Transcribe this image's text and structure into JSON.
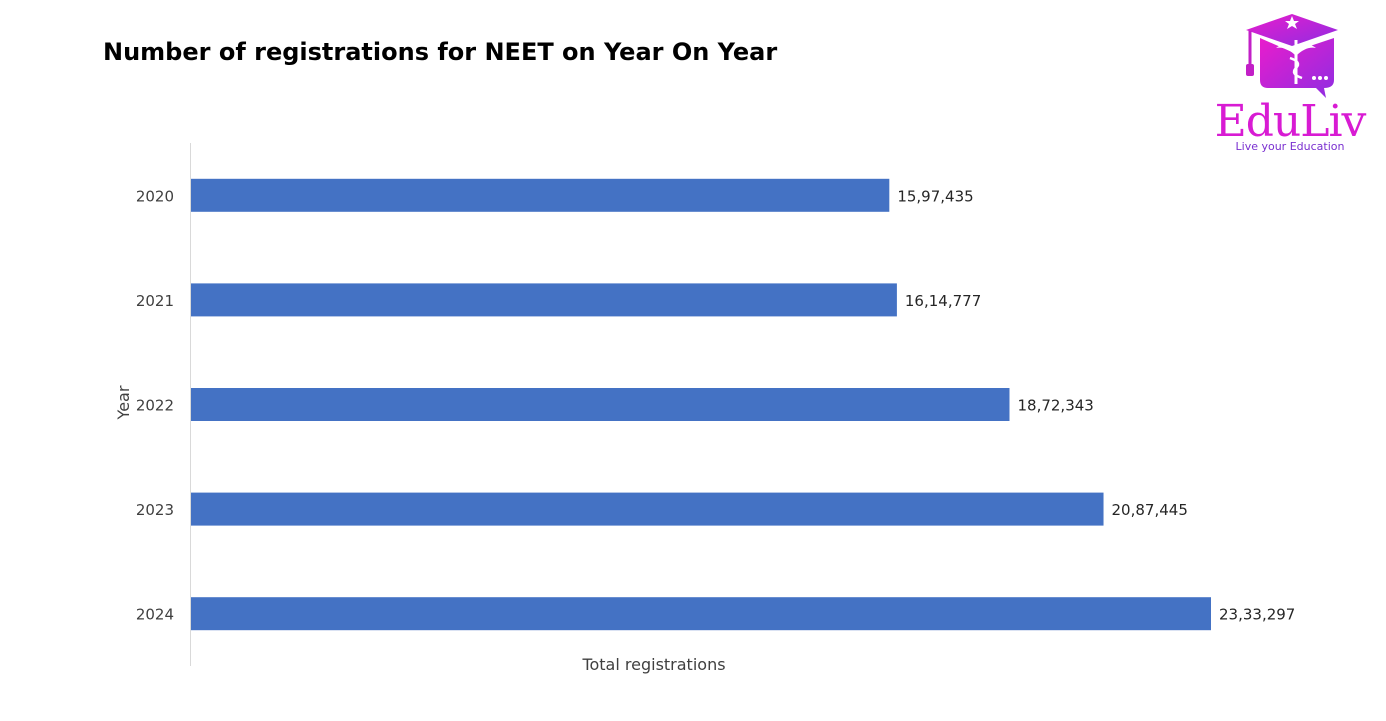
{
  "chart_data": {
    "type": "bar",
    "orientation": "horizontal",
    "title": "Number of registrations for NEET on Year On Year",
    "xlabel": "Total registrations",
    "ylabel": "Year",
    "categories": [
      "2020",
      "2021",
      "2022",
      "2023",
      "2024"
    ],
    "values": [
      1597435,
      1614777,
      1872343,
      2087445,
      2333297
    ],
    "data_labels": [
      "15,97,435",
      "16,14,777",
      "18,72,343",
      "20,87,445",
      "23,33,297"
    ],
    "xlim": [
      0,
      2333297
    ],
    "grid": false,
    "legend": "none",
    "bar_color": "#4472c4"
  },
  "logo": {
    "wordmark": "EduLiv",
    "tagline": "Live your Education",
    "colors": {
      "magenta": "#e91ccc",
      "purple": "#8e2de2"
    }
  }
}
